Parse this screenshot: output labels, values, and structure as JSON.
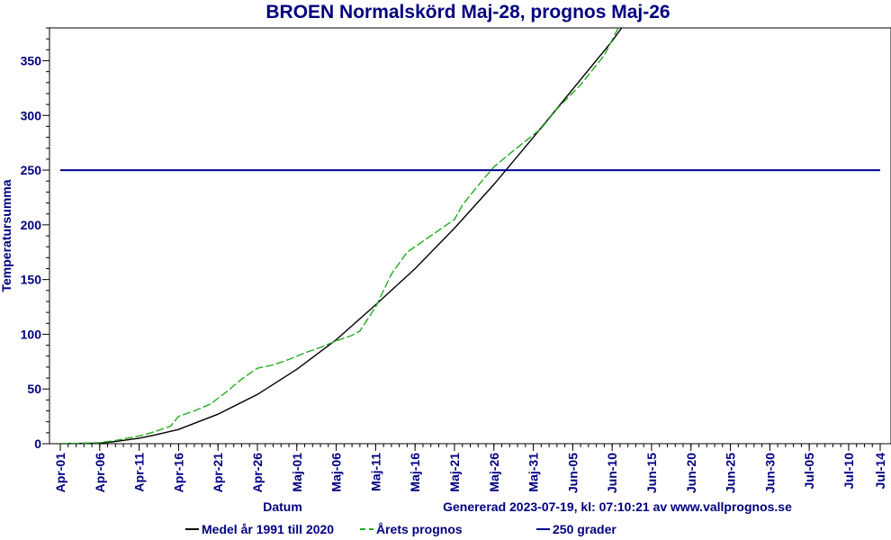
{
  "colors": {
    "text": "#000080",
    "axis": "#000000",
    "series_medel": "#000000",
    "series_prognos": "#22aa22",
    "threshold": "#000090"
  },
  "chart_data": {
    "type": "line",
    "title": "BROEN Normalskörd Maj-28, prognos Maj-26",
    "xlabel": "Datum",
    "ylabel": "Temperatursumma",
    "footer": "Genererad 2023-07-19, kl: 07:10:21 av www.vallprognos.se",
    "x_start": "2023-04-01",
    "x_end": "2023-07-14",
    "ylim": [
      0,
      380
    ],
    "yticks": [
      0,
      50,
      100,
      150,
      200,
      250,
      300,
      350
    ],
    "xticks": [
      {
        "date": "2023-04-01",
        "label": "Apr-01"
      },
      {
        "date": "2023-04-06",
        "label": "Apr-06"
      },
      {
        "date": "2023-04-11",
        "label": "Apr-11"
      },
      {
        "date": "2023-04-16",
        "label": "Apr-16"
      },
      {
        "date": "2023-04-21",
        "label": "Apr-21"
      },
      {
        "date": "2023-04-26",
        "label": "Apr-26"
      },
      {
        "date": "2023-05-01",
        "label": "Maj-01"
      },
      {
        "date": "2023-05-06",
        "label": "Maj-06"
      },
      {
        "date": "2023-05-11",
        "label": "Maj-11"
      },
      {
        "date": "2023-05-16",
        "label": "Maj-16"
      },
      {
        "date": "2023-05-21",
        "label": "Maj-21"
      },
      {
        "date": "2023-05-26",
        "label": "Maj-26"
      },
      {
        "date": "2023-05-31",
        "label": "Maj-31"
      },
      {
        "date": "2023-06-05",
        "label": "Jun-05"
      },
      {
        "date": "2023-06-10",
        "label": "Jun-10"
      },
      {
        "date": "2023-06-15",
        "label": "Jun-15"
      },
      {
        "date": "2023-06-20",
        "label": "Jun-20"
      },
      {
        "date": "2023-06-25",
        "label": "Jun-25"
      },
      {
        "date": "2023-06-30",
        "label": "Jun-30"
      },
      {
        "date": "2023-07-05",
        "label": "Jul-05"
      },
      {
        "date": "2023-07-10",
        "label": "Jul-10"
      },
      {
        "date": "2023-07-14",
        "label": "Jul-14"
      }
    ],
    "series": [
      {
        "name": "Medel år 1991 till 2020",
        "style": "solid",
        "points": [
          [
            "2023-04-01",
            0
          ],
          [
            "2023-04-06",
            0.5
          ],
          [
            "2023-04-08",
            2
          ],
          [
            "2023-04-11",
            5
          ],
          [
            "2023-04-13",
            8
          ],
          [
            "2023-04-16",
            13
          ],
          [
            "2023-04-21",
            27
          ],
          [
            "2023-04-26",
            45
          ],
          [
            "2023-05-01",
            68
          ],
          [
            "2023-05-06",
            95
          ],
          [
            "2023-05-11",
            127
          ],
          [
            "2023-05-16",
            160
          ],
          [
            "2023-05-21",
            197
          ],
          [
            "2023-05-26",
            237
          ],
          [
            "2023-05-31",
            280
          ],
          [
            "2023-06-05",
            324
          ],
          [
            "2023-06-10",
            368
          ],
          [
            "2023-06-13",
            398
          ]
        ]
      },
      {
        "name": "Årets prognos",
        "style": "dashed",
        "points": [
          [
            "2023-04-01",
            0
          ],
          [
            "2023-04-06",
            1
          ],
          [
            "2023-04-08",
            3
          ],
          [
            "2023-04-11",
            7
          ],
          [
            "2023-04-13",
            11
          ],
          [
            "2023-04-15",
            16
          ],
          [
            "2023-04-16",
            25
          ],
          [
            "2023-04-18",
            30
          ],
          [
            "2023-04-20",
            36
          ],
          [
            "2023-04-22",
            47
          ],
          [
            "2023-04-24",
            59
          ],
          [
            "2023-04-26",
            69
          ],
          [
            "2023-04-28",
            72
          ],
          [
            "2023-04-30",
            77
          ],
          [
            "2023-05-02",
            83
          ],
          [
            "2023-05-04",
            88
          ],
          [
            "2023-05-06",
            94
          ],
          [
            "2023-05-08",
            99
          ],
          [
            "2023-05-09",
            103
          ],
          [
            "2023-05-11",
            125
          ],
          [
            "2023-05-13",
            155
          ],
          [
            "2023-05-15",
            175
          ],
          [
            "2023-05-18",
            190
          ],
          [
            "2023-05-21",
            205
          ],
          [
            "2023-05-22",
            218
          ],
          [
            "2023-05-24",
            236
          ],
          [
            "2023-05-26",
            253
          ],
          [
            "2023-05-28",
            265
          ],
          [
            "2023-06-01",
            288
          ],
          [
            "2023-06-03",
            306
          ],
          [
            "2023-06-06",
            328
          ],
          [
            "2023-06-09",
            355
          ],
          [
            "2023-06-11",
            383
          ],
          [
            "2023-06-12",
            395
          ]
        ]
      },
      {
        "name": "250 grader",
        "style": "solid",
        "points": [
          [
            "2023-04-01",
            250
          ],
          [
            "2023-07-14",
            250
          ]
        ]
      }
    ]
  }
}
